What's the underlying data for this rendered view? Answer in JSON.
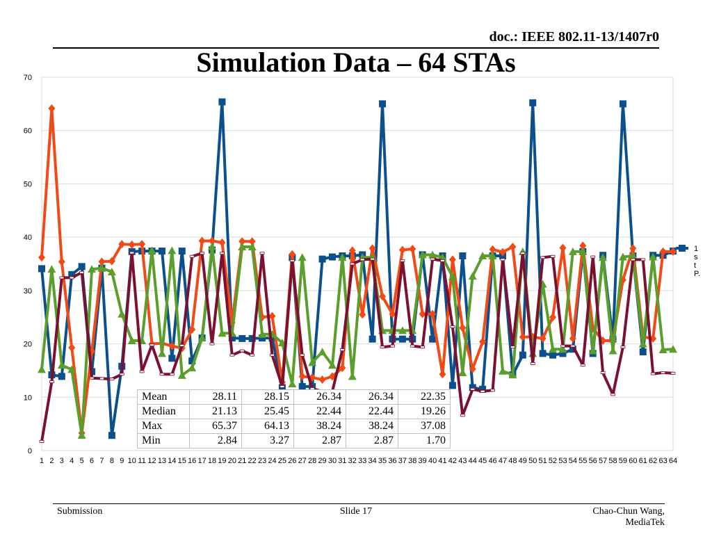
{
  "header": {
    "doc_id": "doc.: IEEE 802.11-13/1407r0",
    "title": "Simulation Data – 64 STAs"
  },
  "footer": {
    "left": "Submission",
    "center": "Slide 17",
    "right_line1": "Chao-Chun Wang,",
    "right_line2": "MediaTek"
  },
  "chart_data": {
    "type": "line",
    "title": "",
    "xlabel": "",
    "ylabel": "",
    "ylim": [
      0,
      70
    ],
    "yticks": [
      0,
      10,
      20,
      30,
      40,
      50,
      60,
      70
    ],
    "grid": true,
    "x": [
      1,
      2,
      3,
      4,
      5,
      6,
      7,
      8,
      9,
      10,
      11,
      12,
      13,
      14,
      15,
      16,
      17,
      18,
      19,
      20,
      21,
      22,
      23,
      24,
      25,
      26,
      27,
      28,
      29,
      30,
      31,
      32,
      33,
      34,
      35,
      36,
      37,
      38,
      39,
      40,
      41,
      42,
      43,
      44,
      45,
      46,
      47,
      48,
      49,
      50,
      51,
      52,
      53,
      54,
      55,
      56,
      57,
      58,
      59,
      60,
      61,
      62,
      63,
      64
    ],
    "legend_visible": [
      "1",
      "s",
      "t",
      "P."
    ],
    "series": [
      {
        "color": "#0b4f8c",
        "marker": "square",
        "values": [
          34.1,
          14.2,
          13.9,
          33.0,
          34.5,
          14.8,
          34.2,
          2.84,
          15.8,
          37.3,
          37.4,
          37.4,
          37.4,
          17.3,
          37.4,
          16.8,
          21.1,
          37.6,
          65.37,
          21.1,
          21.0,
          21.0,
          21.1,
          21.1,
          11.8,
          36.2,
          12.0,
          12.0,
          35.9,
          36.3,
          36.5,
          36.5,
          36.7,
          20.9,
          65.0,
          20.9,
          20.9,
          20.9,
          36.7,
          20.9,
          36.5,
          12.2,
          36.5,
          11.8,
          11.5,
          36.5,
          36.5,
          14.2,
          17.9,
          65.2,
          18.2,
          17.9,
          18.2,
          19.0,
          37.3,
          18.2,
          36.6,
          20.9,
          65.0,
          36.5,
          18.5,
          36.6,
          36.6,
          37.4
        ]
      },
      {
        "color": "#f24a16",
        "marker": "diamond",
        "values": [
          36.2,
          64.13,
          35.4,
          19.3,
          3.27,
          18.6,
          35.4,
          35.5,
          38.7,
          38.6,
          38.7,
          20.0,
          20.1,
          19.6,
          19.2,
          22.7,
          39.3,
          39.3,
          39.0,
          24.0,
          39.2,
          39.2,
          25.0,
          25.2,
          12.8,
          36.8,
          13.9,
          13.7,
          13.3,
          13.9,
          15.5,
          37.5,
          25.5,
          37.9,
          28.9,
          25.6,
          37.6,
          37.8,
          25.6,
          25.6,
          14.3,
          35.8,
          23.0,
          15.3,
          20.4,
          37.7,
          37.2,
          38.2,
          21.3,
          21.3,
          21.0,
          25.0,
          38.0,
          21.0,
          38.4,
          22.9,
          20.6,
          20.6,
          32.0,
          37.9,
          21.3,
          21.0,
          37.3,
          37.3
        ]
      },
      {
        "color": "#5a9e2b",
        "marker": "triangle",
        "values": [
          15.2,
          34.0,
          16.0,
          15.2,
          2.87,
          34.0,
          34.2,
          33.5,
          25.6,
          20.6,
          20.6,
          37.5,
          18.2,
          37.5,
          14.1,
          15.5,
          21.1,
          38.24,
          22.0,
          22.0,
          38.2,
          38.2,
          21.8,
          21.8,
          20.2,
          12.5,
          36.2,
          16.5,
          18.5,
          16.0,
          36.2,
          13.9,
          36.2,
          36.2,
          22.5,
          22.5,
          22.5,
          22.5,
          36.7,
          36.7,
          36.2,
          32.6,
          14.6,
          32.7,
          36.5,
          36.5,
          14.9,
          14.2,
          37.3,
          18.2,
          31.2,
          19.0,
          19.0,
          37.3,
          37.3,
          18.7,
          36.2,
          18.7,
          36.3,
          36.5,
          20.0,
          36.3,
          18.9,
          19.0
        ]
      },
      {
        "color": "#7b1131",
        "marker": "dash",
        "values": [
          1.7,
          12.9,
          32.4,
          32.4,
          33.4,
          13.6,
          13.5,
          13.4,
          14.3,
          37.08,
          14.8,
          19.8,
          14.3,
          14.3,
          19.7,
          36.4,
          37.0,
          20.0,
          37.0,
          17.9,
          18.7,
          17.9,
          37.0,
          17.9,
          12.0,
          35.6,
          17.9,
          11.6,
          11.1,
          11.1,
          18.9,
          35.0,
          35.8,
          35.9,
          19.4,
          19.6,
          35.6,
          19.6,
          19.4,
          35.9,
          35.6,
          23.2,
          6.6,
          11.5,
          11.1,
          11.3,
          35.8,
          19.4,
          37.0,
          16.3,
          36.2,
          36.4,
          19.6,
          19.6,
          16.0,
          36.3,
          14.6,
          10.5,
          19.4,
          35.8,
          35.8,
          14.4,
          14.6,
          14.5
        ]
      }
    ],
    "summary_table": {
      "rows": [
        {
          "label": "Mean",
          "values": [
            "28.11",
            "28.15",
            "26.34",
            "26.34",
            "22.35"
          ]
        },
        {
          "label": "Median",
          "values": [
            "21.13",
            "25.45",
            "22.44",
            "22.44",
            "19.26"
          ]
        },
        {
          "label": "Max",
          "values": [
            "65.37",
            "64.13",
            "38.24",
            "38.24",
            "37.08"
          ]
        },
        {
          "label": "Min",
          "values": [
            "2.84",
            "3.27",
            "2.87",
            "2.87",
            "1.70"
          ]
        }
      ]
    }
  }
}
